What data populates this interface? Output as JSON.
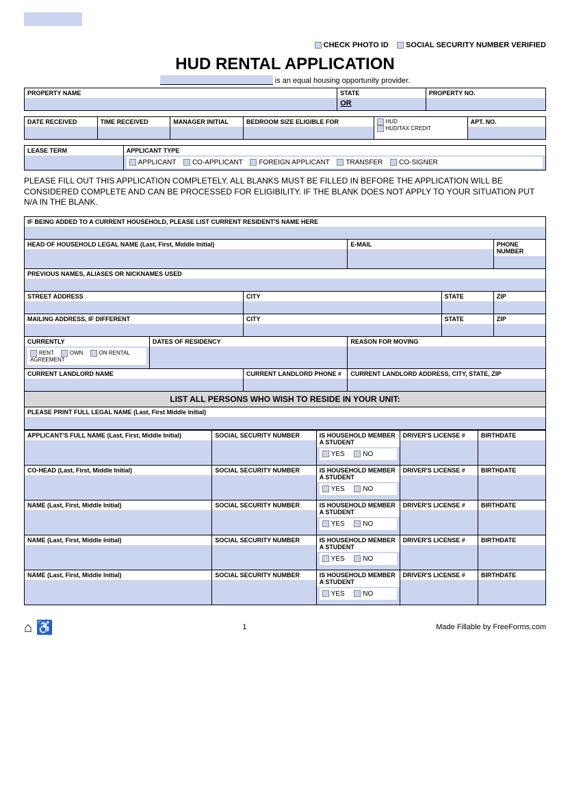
{
  "top_checks": {
    "c1": "CHECK PHOTO ID",
    "c2": "SOCIAL SECURITY NUMBER VERIFIED"
  },
  "title": "HUD RENTAL APPLICATION",
  "subtitle_suffix": " is an equal housing opportunity provider.",
  "row1": {
    "propname": "PROPERTY NAME",
    "state": "STATE",
    "or": "OR",
    "propno": "PROPERTY NO."
  },
  "row2": {
    "date": "DATE RECEIVED",
    "time": "TIME RECEIVED",
    "mgr": "MANAGER INITIAL",
    "bed": "BEDROOM SIZE ELIGIBLE FOR",
    "hud": "HUD",
    "htc": "HUD/TAX CREDIT",
    "apt": "APT. NO."
  },
  "row3": {
    "lease": "LEASE TERM",
    "apptype": "APPLICANT TYPE",
    "o1": "APPLICANT",
    "o2": "CO-APPLICANT",
    "o3": "FOREIGN APPLICANT",
    "o4": "TRANSFER",
    "o5": "CO-SIGNER"
  },
  "instruct": "PLEASE FILL OUT THIS APPLICATION COMPLETELY. ALL BLANKS MUST BE FILLED IN BEFORE THE APPLICATION WILL BE CONSIDERED COMPLETE AND CAN BE PROCESSED FOR ELIGIBILITY. IF THE BLANK DOES NOT APPLY TO YOUR SITUATION PUT N/A IN THE BLANK.",
  "s1": {
    "added": "IF BEING ADDED TO A CURRENT HOUSEHOLD, PLEASE LIST CURRENT RESIDENT'S NAME HERE",
    "head": "HEAD OF HOUSEHOLD LEGAL NAME (Last, First, Middle Initial)",
    "email": "E-MAIL",
    "phone": "PHONE NUMBER",
    "prev": "PREVIOUS NAMES, ALIASES OR NICKNAMES USED",
    "street": "STREET ADDRESS",
    "city": "CITY",
    "st": "STATE",
    "zip": "ZIP",
    "mail": "MAILING ADDRESS, IF DIFFERENT",
    "curr": "CURRENTLY",
    "rent": "RENT",
    "own": "OWN",
    "ra": "ON RENTAL AGREEMENT",
    "dates": "DATES OF RESIDENCY",
    "reason": "REASON FOR MOVING",
    "llname": "CURRENT LANDLORD NAME",
    "llphone": "CURRENT LANDLORD PHONE #",
    "lladdr": "CURRENT LANDLORD ADDRESS, CITY, STATE, ZIP"
  },
  "listhdr": "LIST ALL PERSONS WHO WISH TO RESIDE IN YOUR UNIT:",
  "printname": "PLEASE PRINT FULL LEGAL NAME (Last, First Middle Initial)",
  "cols": {
    "ssn": "SOCIAL SECURITY NUMBER",
    "student": "IS HOUSEHOLD MEMBER A STUDENT",
    "dl": "DRIVER'S LICENSE #",
    "bd": "BIRTHDATE",
    "yes": "YES",
    "no": "NO"
  },
  "persons": [
    "APPLICANT'S FULL NAME (Last, First, Middle Initial)",
    "CO-HEAD (Last, First, Middle Initial)",
    "NAME (Last, First, Middle Initial)",
    "NAME (Last, First, Middle Initial)",
    "NAME (Last, First, Middle Initial)"
  ],
  "footer": {
    "page": "1",
    "credit": "Made Fillable by FreeForms.com"
  }
}
